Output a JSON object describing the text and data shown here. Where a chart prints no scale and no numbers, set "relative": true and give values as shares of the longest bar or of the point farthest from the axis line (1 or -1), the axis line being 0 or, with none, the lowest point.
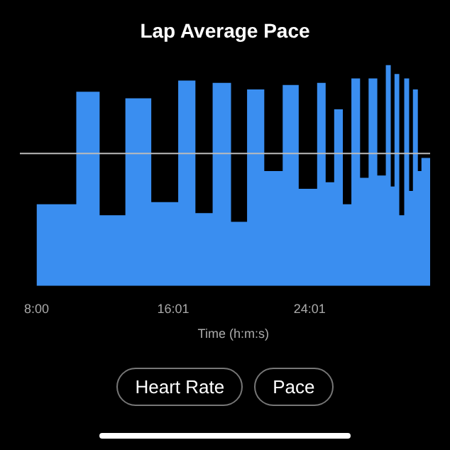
{
  "chart_data": {
    "type": "step",
    "title": "Lap Average Pace",
    "xlabel": "Time (h:m:s)",
    "relative": true,
    "x": [
      8,
      10.33,
      11.7,
      13.21,
      14.73,
      16.31,
      17.32,
      18.33,
      19.41,
      20.35,
      21.36,
      22.44,
      23.38,
      24.46,
      24.96,
      25.46,
      25.97,
      26.47,
      26.98,
      27.48,
      27.99,
      28.49,
      28.78,
      29,
      29.28,
      29.57,
      29.86,
      30.08,
      30.37,
      30.58,
      31.09
    ],
    "series": [
      {
        "type": "area",
        "color": "#3a8ef0",
        "values": [
          0.37,
          0.88,
          0.32,
          0.85,
          0.38,
          0.93,
          0.33,
          0.92,
          0.29,
          0.89,
          0.52,
          0.91,
          0.44,
          0.92,
          0.47,
          0.8,
          0.37,
          0.94,
          0.49,
          0.94,
          0.5,
          1,
          0.45,
          0.96,
          0.32,
          0.94,
          0.43,
          0.89,
          0.52,
          0.58,
          0.58
        ]
      }
    ],
    "xlim": [
      8,
      31.09
    ],
    "xticks": [
      {
        "value": 8,
        "label": "8:00"
      },
      {
        "value": 16.02,
        "label": "16:01"
      },
      {
        "value": 24.02,
        "label": "24:01"
      }
    ],
    "ref_lines": [
      {
        "axis": "y",
        "value": 0.6,
        "color": "#bbbbbb"
      }
    ],
    "annotations": [
      "Heart Rate",
      "Pace"
    ],
    "grid": false,
    "legend": false
  }
}
